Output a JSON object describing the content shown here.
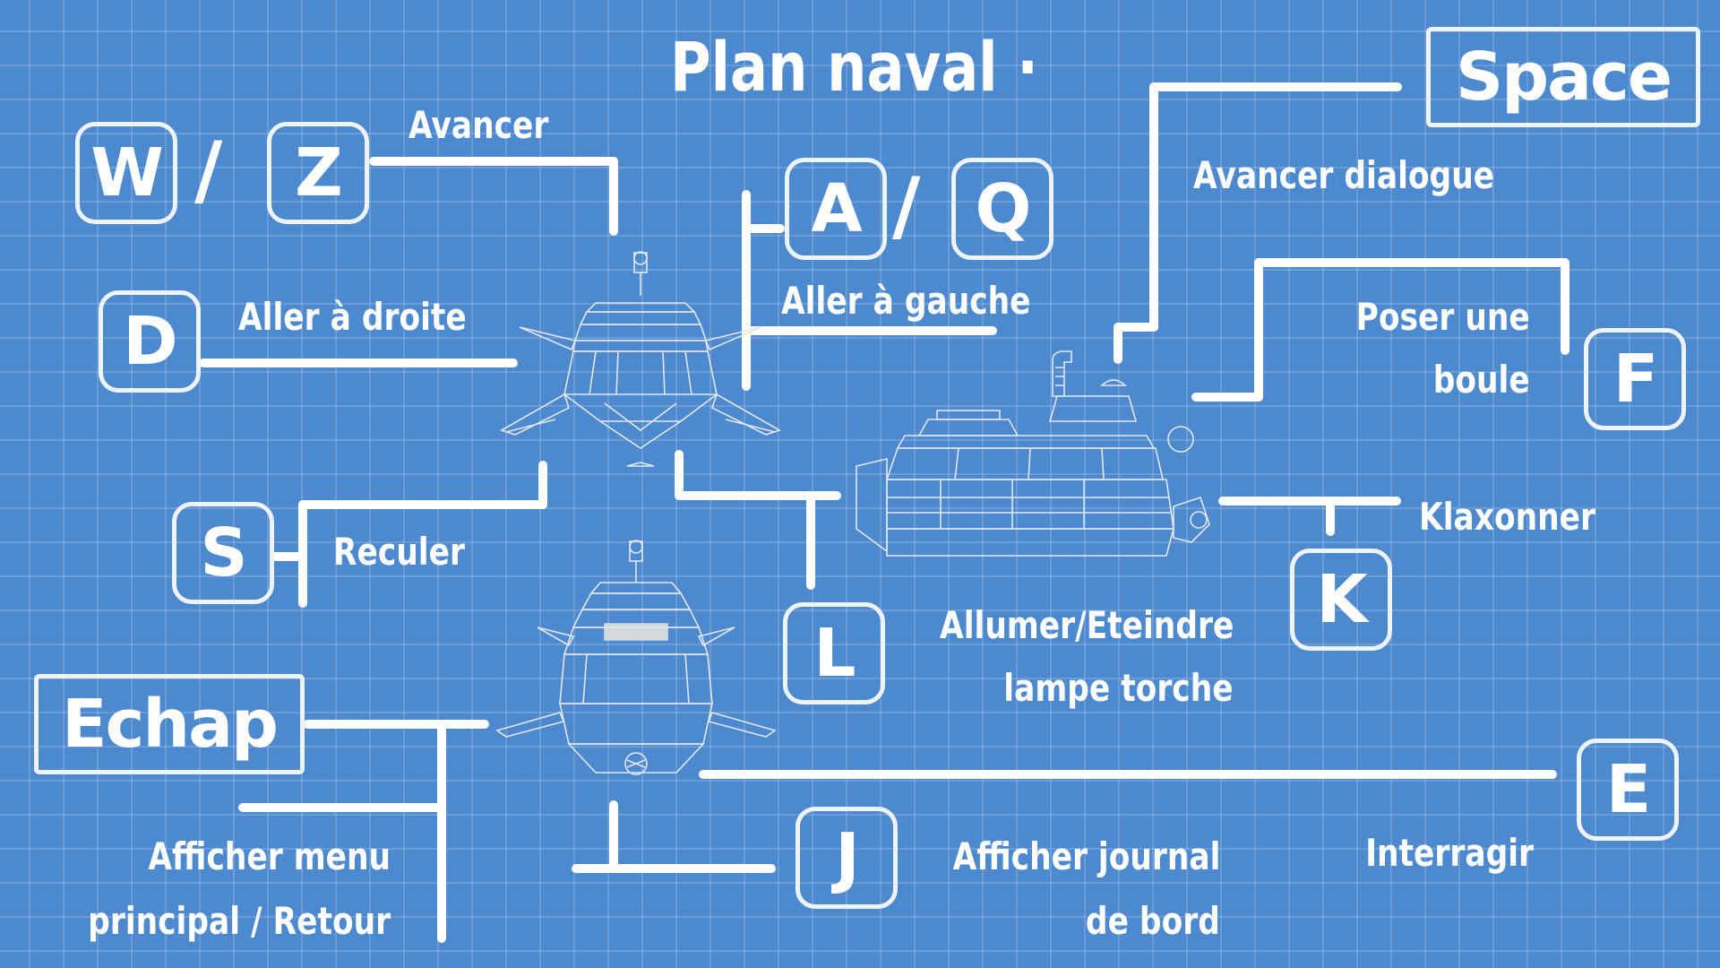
{
  "title": "Plan naval ·",
  "controls": {
    "forward": {
      "keys": [
        "W",
        "Z"
      ],
      "separator": "/",
      "label": "Avancer"
    },
    "right": {
      "key": "D",
      "label": "Aller à droite"
    },
    "left": {
      "keys": [
        "A",
        "Q"
      ],
      "separator": "/",
      "label": "Aller à gauche"
    },
    "back": {
      "key": "S",
      "label": "Reculer"
    },
    "menu": {
      "key": "Echap",
      "label_line1": "Afficher menu",
      "label_line2": "principal / Retour"
    },
    "dialogue": {
      "key": "Space",
      "label": "Avancer dialogue"
    },
    "ball": {
      "key": "F",
      "label_line1": "Poser une",
      "label_line2": "boule"
    },
    "horn": {
      "key": "K",
      "label": "Klaxonner"
    },
    "torch": {
      "key": "L",
      "label_line1": "Allumer/Eteindre",
      "label_line2": "lampe torche"
    },
    "journal": {
      "key": "J",
      "label_line1": "Afficher journal",
      "label_line2": "de bord"
    },
    "interact": {
      "key": "E",
      "label": "Interragir"
    }
  },
  "colors": {
    "background": "#4d89cf",
    "grid": "rgba(255,255,255,0.16)",
    "ink": "#ffffff"
  }
}
